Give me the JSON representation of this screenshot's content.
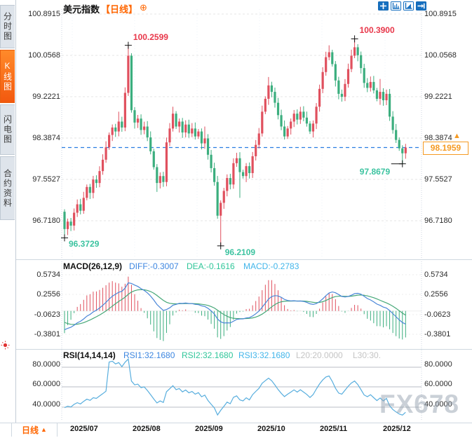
{
  "header": {
    "title": "美元指数",
    "period_tag": "【日线】",
    "plus_icon": "⊕"
  },
  "toolbar": {
    "icons": [
      "pan-icon",
      "axis-scale-icon",
      "axis-fit-icon",
      "goto-latest-icon"
    ]
  },
  "sidebar": {
    "tabs": [
      {
        "label": "分时图",
        "active": false
      },
      {
        "label": "K线图",
        "active": true
      },
      {
        "label": "闪电图",
        "active": false
      },
      {
        "label": "合约资料",
        "active": false
      }
    ]
  },
  "colors": {
    "up": "#e0505e",
    "down": "#3bae7e",
    "annotation_high": "#e8374a",
    "annotation_low": "#3cc3a0",
    "accent_orange": "#ff6600",
    "tag_orange": "#f59a23",
    "price_line_blue": "#2a7de1",
    "diff_line": "#4a86d8",
    "dea_line": "#46a878",
    "rsi_line": "#58aede",
    "legend_diff": "#3d86e0",
    "legend_dea": "#2fc699",
    "legend_macd": "#41b5ea",
    "legend_gray": "#c4c4c4"
  },
  "main_chart": {
    "y_axis_labels": [
      "100.8915",
      "100.0568",
      "99.2221",
      "98.3874",
      "97.5527",
      "96.7180"
    ],
    "current_price": 98.1959,
    "price_tag": "98.1959",
    "tag_arrow": "▲",
    "annotations": [
      {
        "text": "100.2599",
        "index": 20,
        "kind": "high"
      },
      {
        "text": "100.3900",
        "index": 91,
        "kind": "high"
      },
      {
        "text": "96.3729",
        "index": 0,
        "kind": "low"
      },
      {
        "text": "96.2109",
        "index": 49,
        "kind": "low"
      },
      {
        "text": "97.8679",
        "index": 106,
        "kind": "low-left"
      }
    ]
  },
  "macd_panel": {
    "title": "MACD(26,12,9)",
    "diff_label": "DIFF:-0.3007",
    "dea_label": "DEA:-0.1616",
    "macd_label": "MACD:-0.2783",
    "axis_labels": [
      "0.5734",
      "0.2556",
      "-0.0623",
      "-0.3801"
    ]
  },
  "rsi_panel": {
    "title": "RSI(14,14,14)",
    "rsi1_label": "RSI1:32.1680",
    "rsi2_label": "RSI2:32.1680",
    "rsi3_label": "RSI3:32.1680",
    "l20_label": "L20:20.0000",
    "l30_label": "L30:30.",
    "axis_labels": [
      "80.0000",
      "60.0000",
      "40.0000"
    ]
  },
  "bottom_bar": {
    "period": "日线",
    "arrow": "▲"
  },
  "watermark": "FX678",
  "chart_data": {
    "type": "candlestick",
    "title": "美元指数 日线",
    "x_labels": [
      "2025/07",
      "2025/08",
      "2025/09",
      "2025/10",
      "2025/11",
      "2025/12"
    ],
    "y_range": [
      96.718,
      100.8915
    ],
    "open_first": 96.9,
    "closes": [
      96.55,
      96.7,
      96.62,
      96.88,
      97.05,
      96.92,
      97.18,
      97.4,
      97.28,
      97.55,
      97.48,
      97.72,
      97.95,
      98.2,
      98.45,
      98.6,
      98.52,
      98.72,
      98.6,
      99.3,
      100.05,
      98.95,
      98.7,
      98.78,
      98.55,
      98.62,
      98.4,
      98.12,
      97.8,
      97.48,
      97.62,
      97.5,
      98.3,
      98.58,
      98.88,
      98.62,
      98.72,
      98.5,
      98.66,
      98.48,
      98.58,
      98.42,
      98.52,
      98.28,
      98.38,
      98.05,
      97.78,
      97.5,
      96.82,
      97.08,
      97.32,
      97.58,
      97.45,
      97.88,
      97.98,
      97.7,
      97.62,
      97.82,
      97.68,
      98.02,
      98.25,
      98.48,
      98.92,
      99.18,
      99.45,
      99.32,
      99.1,
      98.85,
      98.62,
      98.42,
      98.58,
      98.72,
      98.88,
      98.76,
      98.92,
      98.8,
      98.68,
      98.52,
      98.68,
      99.02,
      99.38,
      99.72,
      100.02,
      100.12,
      99.88,
      99.55,
      99.28,
      99.22,
      99.48,
      99.78,
      100.05,
      100.22,
      100.06,
      99.8,
      99.5,
      99.4,
      99.52,
      99.35,
      99.18,
      99.32,
      99.15,
      99.28,
      98.82,
      98.55,
      98.35,
      98.18,
      98.08,
      98.1959
    ],
    "high_overrides": {
      "17": 98.92,
      "20": 100.2599,
      "34": 99.02,
      "44": 98.62,
      "64": 99.62,
      "83": 100.26,
      "91": 100.39,
      "99": 99.58
    },
    "low_overrides": {
      "0": 96.3729,
      "29": 97.3,
      "49": 96.2109,
      "55": 97.18,
      "106": 97.8679
    },
    "marked_high": 100.39,
    "marked_low": 96.2109,
    "last_close": 98.1959,
    "indicators": {
      "macd": [
        26,
        12,
        9
      ],
      "rsi": [
        14,
        14,
        14
      ]
    }
  }
}
